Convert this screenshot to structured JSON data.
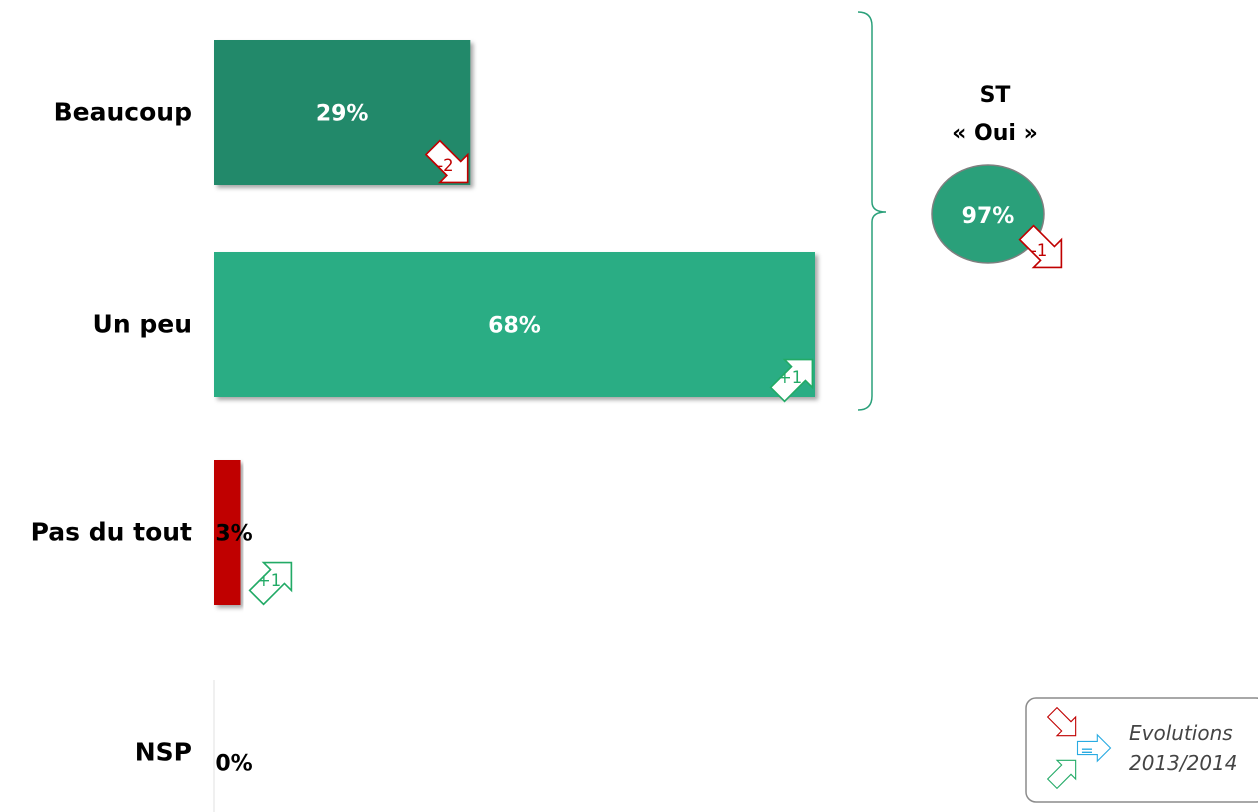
{
  "chart_data": {
    "type": "bar",
    "orientation": "horizontal",
    "categories": [
      "Beaucoup",
      "Un peu",
      "Pas du tout",
      "NSP"
    ],
    "values": [
      29,
      68,
      3,
      0
    ],
    "value_labels": [
      "29%",
      "68%",
      "3%",
      "0%"
    ],
    "evolutions": [
      {
        "label": "-2",
        "direction": "down"
      },
      {
        "label": "+1",
        "direction": "up"
      },
      {
        "label": "+1",
        "direction": "up"
      },
      null
    ],
    "colors": [
      "#21896a",
      "#2aad84",
      "#c00000",
      "#ffffff"
    ],
    "subtotal": {
      "title_line1": "ST",
      "title_line2": "« Oui »",
      "value_label": "97%",
      "evolution": {
        "label": "-1",
        "direction": "down"
      },
      "color": "#2aa07a",
      "groups": [
        "Beaucoup",
        "Un peu"
      ]
    },
    "legend": {
      "line1": "Evolutions",
      "line2": "2013/2014",
      "equal_label": "=",
      "down_color": "#c00000",
      "equal_color": "#29abe2",
      "up_color": "#22aa66"
    }
  }
}
